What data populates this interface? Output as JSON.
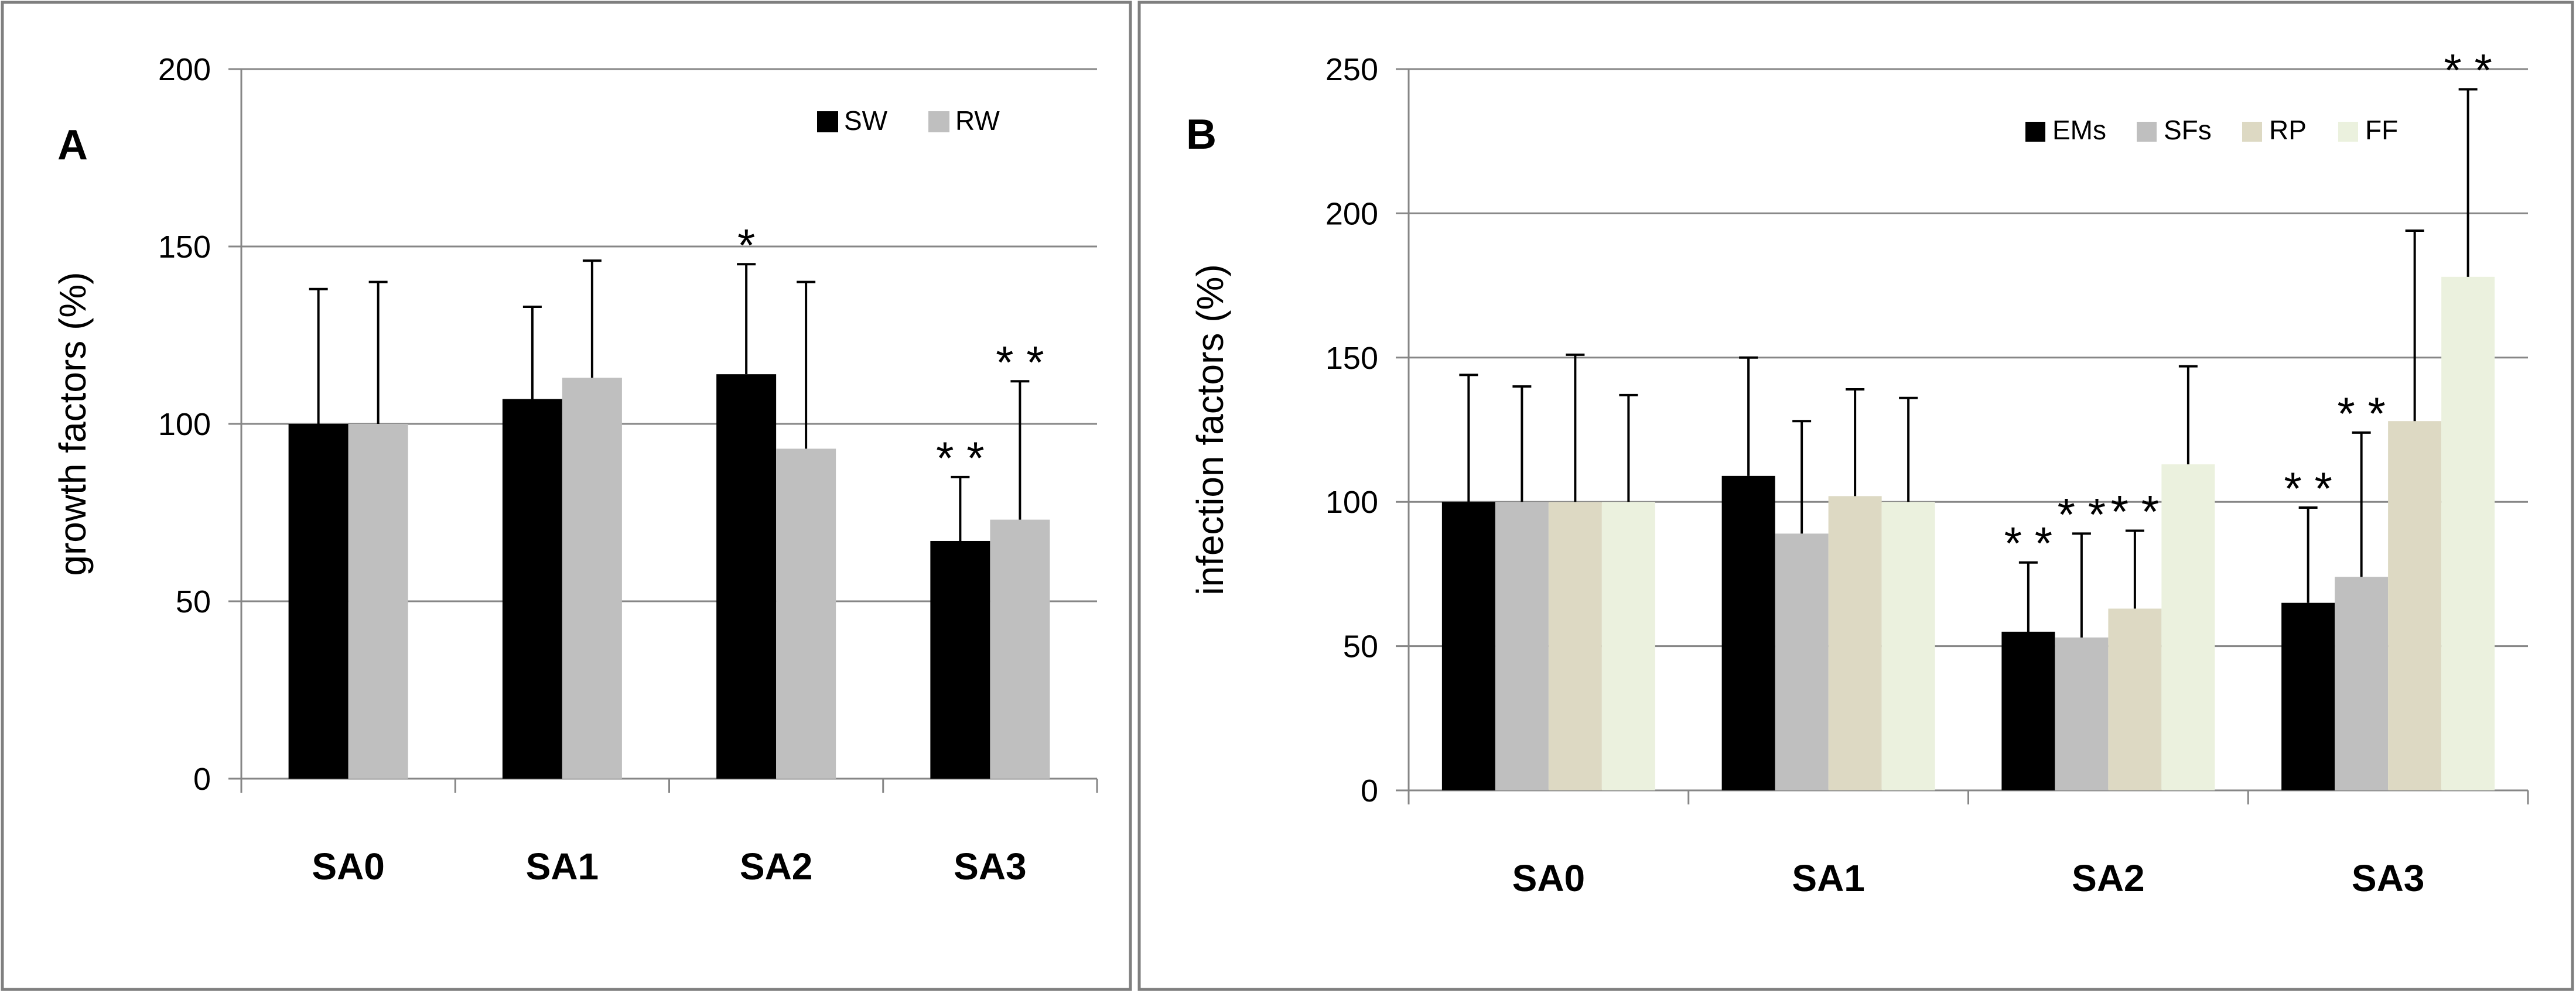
{
  "chart_data": [
    {
      "type": "bar",
      "panel_label": "A",
      "ylabel": "growth factors (%)",
      "ylim": [
        0,
        200
      ],
      "yticks": [
        0,
        50,
        100,
        150,
        200
      ],
      "grid": true,
      "legend_position": "top-right",
      "categories": [
        "SA0",
        "SA1",
        "SA2",
        "SA3"
      ],
      "series": [
        {
          "name": "SW",
          "color": "#000000",
          "values": [
            100,
            107,
            114,
            67
          ],
          "errors": [
            38,
            26,
            31,
            18
          ],
          "significance": [
            "",
            "",
            "*",
            "**"
          ]
        },
        {
          "name": "RW",
          "color": "#bfbfbf",
          "values": [
            100,
            113,
            93,
            73
          ],
          "errors": [
            40,
            33,
            47,
            39
          ],
          "significance": [
            "",
            "",
            "",
            "**"
          ]
        }
      ]
    },
    {
      "type": "bar",
      "panel_label": "B",
      "ylabel": "infection factors (%)",
      "ylim": [
        0,
        250
      ],
      "yticks": [
        0,
        50,
        100,
        150,
        200,
        250
      ],
      "grid": true,
      "legend_position": "top-right",
      "categories": [
        "SA0",
        "SA1",
        "SA2",
        "SA3"
      ],
      "series": [
        {
          "name": "EMs",
          "color": "#000000",
          "values": [
            100,
            109,
            55,
            65
          ],
          "errors": [
            44,
            41,
            24,
            33
          ],
          "significance": [
            "",
            "",
            "**",
            "**"
          ]
        },
        {
          "name": "SFs",
          "color": "#bfbfbf",
          "values": [
            100,
            89,
            53,
            74
          ],
          "errors": [
            40,
            39,
            36,
            50
          ],
          "significance": [
            "",
            "",
            "**",
            "**"
          ]
        },
        {
          "name": "RP",
          "color": "#ddd9c3",
          "values": [
            100,
            102,
            63,
            128
          ],
          "errors": [
            51,
            37,
            27,
            66
          ],
          "significance": [
            "",
            "",
            "**",
            ""
          ]
        },
        {
          "name": "FF",
          "color": "#ebf1de",
          "values": [
            100,
            100,
            113,
            178
          ],
          "errors": [
            37,
            36,
            34,
            65
          ],
          "significance": [
            "",
            "",
            "",
            "**"
          ]
        }
      ]
    }
  ]
}
